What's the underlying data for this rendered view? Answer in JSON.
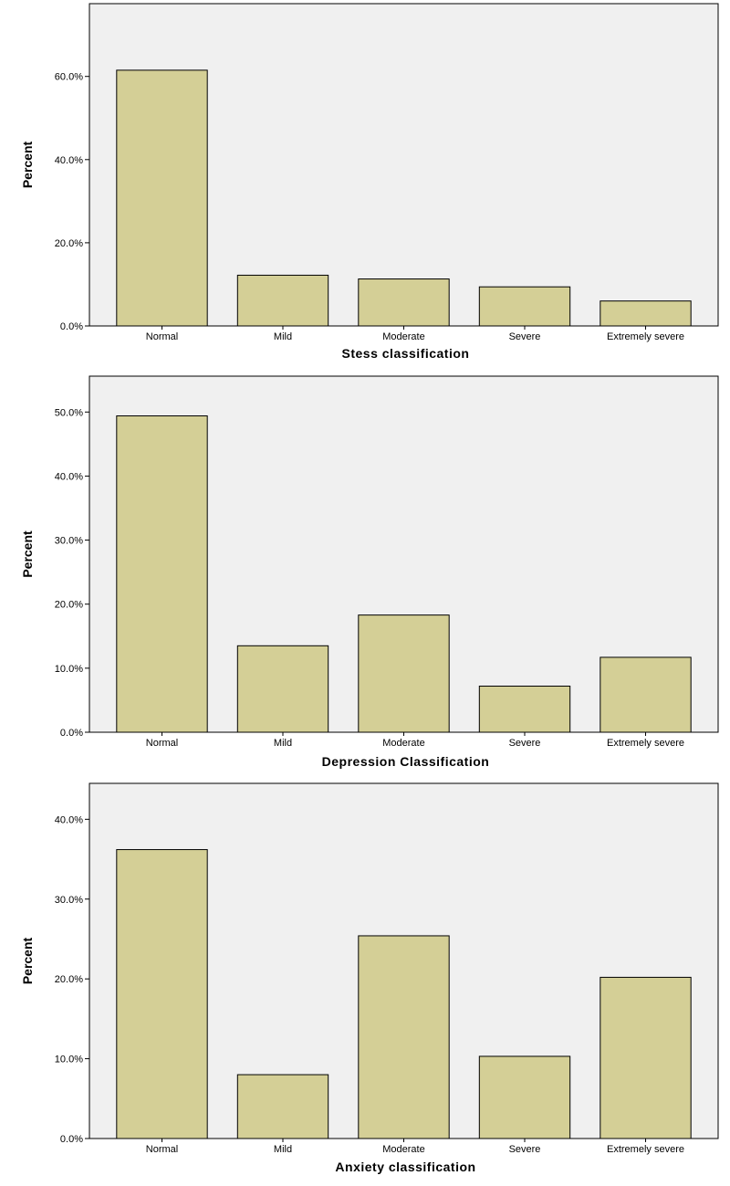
{
  "colors": {
    "plot_background": "#f0f0f0",
    "bar_fill": "#d4cf96",
    "bar_stroke": "#000000",
    "axis": "#000000"
  },
  "chart_data": [
    {
      "type": "bar",
      "title": "",
      "xlabel": "Stess classification",
      "ylabel": "Percent",
      "categories": [
        "Normal",
        "Mild",
        "Moderate",
        "Severe",
        "Extremely severe"
      ],
      "values": [
        61.5,
        12.2,
        11.3,
        9.4,
        6.0
      ],
      "ylim": [
        0,
        77.5
      ],
      "yticks": [
        "0.0%",
        "20.0%",
        "40.0%",
        "60.0%"
      ],
      "ytick_values": [
        0,
        20,
        40,
        60
      ],
      "grid": false,
      "legend": "none"
    },
    {
      "type": "bar",
      "title": "",
      "xlabel": "Depression Classification",
      "ylabel": "Percent",
      "categories": [
        "Normal",
        "Mild",
        "Moderate",
        "Severe",
        "Extremely severe"
      ],
      "values": [
        49.4,
        13.5,
        18.3,
        7.2,
        11.7
      ],
      "ylim": [
        0,
        55.6
      ],
      "yticks": [
        "0.0%",
        "10.0%",
        "20.0%",
        "30.0%",
        "40.0%",
        "50.0%"
      ],
      "ytick_values": [
        0,
        10,
        20,
        30,
        40,
        50
      ],
      "grid": false,
      "legend": "none"
    },
    {
      "type": "bar",
      "title": "",
      "xlabel": "Anxiety classification",
      "ylabel": "Percent",
      "categories": [
        "Normal",
        "Mild",
        "Moderate",
        "Severe",
        "Extremely severe"
      ],
      "values": [
        36.2,
        8.0,
        25.4,
        10.3,
        20.2
      ],
      "ylim": [
        0,
        44.5
      ],
      "yticks": [
        "0.0%",
        "10.0%",
        "20.0%",
        "30.0%",
        "40.0%"
      ],
      "ytick_values": [
        0,
        10,
        20,
        30,
        40
      ],
      "grid": false,
      "legend": "none"
    }
  ]
}
